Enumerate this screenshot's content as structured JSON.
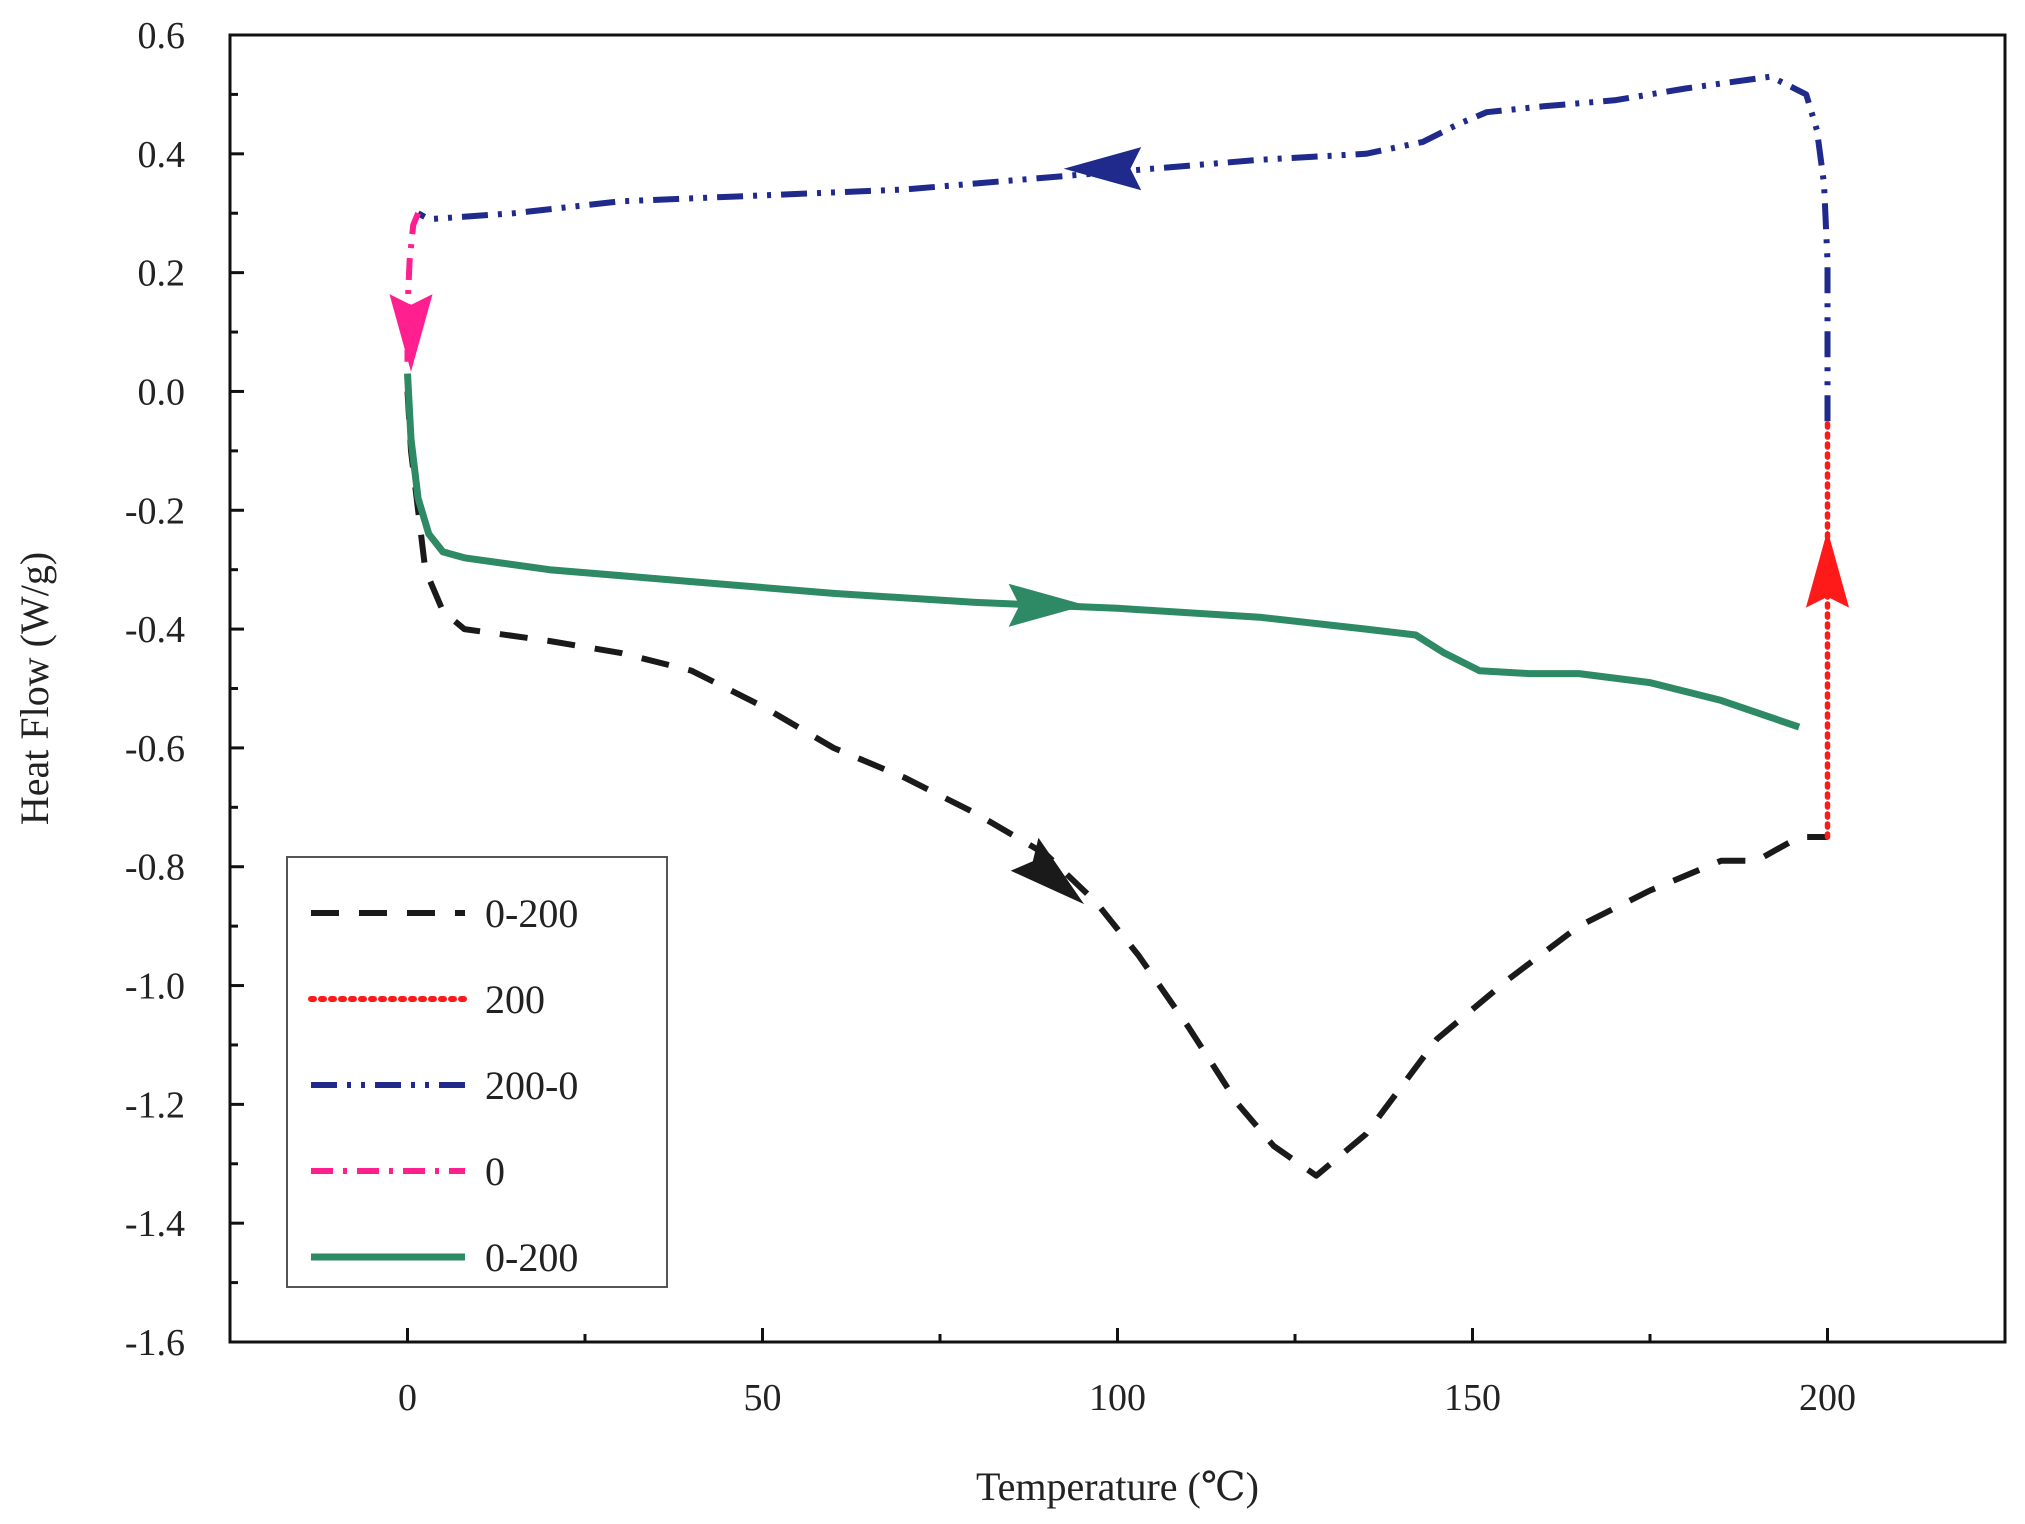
{
  "chart_data": {
    "type": "line",
    "title": "",
    "xlabel": "Temperature (℃)",
    "ylabel": "Heat Flow (W/g)",
    "xlim": [
      -25,
      225
    ],
    "ylim": [
      -1.6,
      0.6
    ],
    "x_ticks": [
      0,
      50,
      100,
      150,
      200
    ],
    "x_tick_labels": [
      "0",
      "50",
      "100",
      "150",
      "200"
    ],
    "y_ticks": [
      0.6,
      0.4,
      0.2,
      0.0,
      -0.2,
      -0.4,
      -0.6,
      -0.8,
      -1.0,
      -1.2,
      -1.4,
      -1.6
    ],
    "y_tick_labels": [
      "0.6",
      "0.4",
      "0.2",
      "0.0",
      "-0.2",
      "-0.4",
      "-0.6",
      "-0.8",
      "-1.0",
      "-1.2",
      "-1.4",
      "-1.6"
    ],
    "grid": false,
    "legend_position": "bottom-left",
    "series": [
      {
        "name": "0-200",
        "color": "#1a1a1a",
        "style": "dashed",
        "points": [
          [
            0,
            0.0
          ],
          [
            0.5,
            -0.1
          ],
          [
            1.5,
            -0.2
          ],
          [
            2.5,
            -0.3
          ],
          [
            5,
            -0.37
          ],
          [
            8,
            -0.4
          ],
          [
            20,
            -0.42
          ],
          [
            30,
            -0.44
          ],
          [
            40,
            -0.47
          ],
          [
            50,
            -0.53
          ],
          [
            60,
            -0.6
          ],
          [
            70,
            -0.65
          ],
          [
            80,
            -0.71
          ],
          [
            90,
            -0.78
          ],
          [
            97,
            -0.86
          ],
          [
            103,
            -0.95
          ],
          [
            110,
            -1.07
          ],
          [
            117,
            -1.2
          ],
          [
            122,
            -1.27
          ],
          [
            128,
            -1.32
          ],
          [
            135,
            -1.25
          ],
          [
            145,
            -1.09
          ],
          [
            155,
            -0.99
          ],
          [
            165,
            -0.9
          ],
          [
            175,
            -0.84
          ],
          [
            185,
            -0.79
          ],
          [
            190,
            -0.79
          ],
          [
            196,
            -0.75
          ],
          [
            200,
            -0.75
          ]
        ],
        "arrow": {
          "at": [
            91,
            -0.82
          ],
          "direction": "down-right"
        }
      },
      {
        "name": "200",
        "color": "#ff1a1a",
        "style": "dotted",
        "points": [
          [
            200,
            -0.75
          ],
          [
            200,
            -0.05
          ]
        ],
        "arrow": {
          "at": [
            200,
            -0.3
          ],
          "direction": "up"
        }
      },
      {
        "name": "200-0",
        "color": "#1f2a8c",
        "style": "dashdotdot",
        "points": [
          [
            200,
            -0.05
          ],
          [
            200,
            0.1
          ],
          [
            200,
            0.22
          ],
          [
            199.5,
            0.35
          ],
          [
            198.5,
            0.44
          ],
          [
            197,
            0.5
          ],
          [
            192,
            0.53
          ],
          [
            180,
            0.51
          ],
          [
            170,
            0.49
          ],
          [
            160,
            0.48
          ],
          [
            152,
            0.47
          ],
          [
            148,
            0.45
          ],
          [
            143,
            0.42
          ],
          [
            135,
            0.4
          ],
          [
            120,
            0.39
          ],
          [
            110,
            0.38
          ],
          [
            100,
            0.37
          ],
          [
            80,
            0.35
          ],
          [
            70,
            0.34
          ],
          [
            50,
            0.33
          ],
          [
            30,
            0.32
          ],
          [
            15,
            0.3
          ],
          [
            3,
            0.29
          ],
          [
            1.5,
            0.3
          ]
        ],
        "arrow": {
          "at": [
            98,
            0.375
          ],
          "direction": "left"
        }
      },
      {
        "name": "0",
        "color": "#ff1f8f",
        "style": "dashdot",
        "points": [
          [
            1.5,
            0.3
          ],
          [
            0.8,
            0.28
          ],
          [
            0.3,
            0.22
          ],
          [
            0,
            0.14
          ],
          [
            0,
            0.05
          ]
        ],
        "arrow": {
          "at": [
            0.5,
            0.1
          ],
          "direction": "down"
        }
      },
      {
        "name": "0-200",
        "color": "#2e8a64",
        "style": "solid",
        "points": [
          [
            0,
            0.03
          ],
          [
            0.5,
            -0.08
          ],
          [
            1.5,
            -0.18
          ],
          [
            3,
            -0.24
          ],
          [
            5,
            -0.27
          ],
          [
            8,
            -0.28
          ],
          [
            20,
            -0.3
          ],
          [
            40,
            -0.32
          ],
          [
            60,
            -0.34
          ],
          [
            80,
            -0.355
          ],
          [
            100,
            -0.365
          ],
          [
            120,
            -0.38
          ],
          [
            135,
            -0.4
          ],
          [
            142,
            -0.41
          ],
          [
            146,
            -0.44
          ],
          [
            151,
            -0.47
          ],
          [
            158,
            -0.475
          ],
          [
            165,
            -0.475
          ],
          [
            175,
            -0.49
          ],
          [
            185,
            -0.52
          ],
          [
            196,
            -0.565
          ]
        ],
        "arrow": {
          "at": [
            90,
            -0.36
          ],
          "direction": "right"
        }
      }
    ]
  }
}
